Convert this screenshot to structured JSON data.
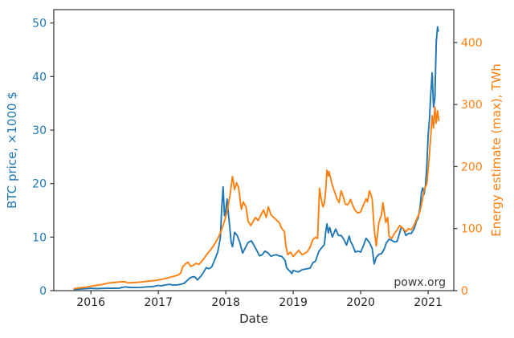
{
  "figure": {
    "watermark": "powx.org",
    "background": "#ffffff",
    "frame_color": "#333333"
  },
  "chart_data": {
    "type": "line",
    "title": "",
    "xlabel": "Date",
    "grid": false,
    "legend": "none",
    "xlim": [
      2015.45,
      2021.38
    ],
    "x_ticks": [
      2016,
      2017,
      2018,
      2019,
      2020,
      2021
    ],
    "left_axis": {
      "label": "BTC price, ×1000 $",
      "color": "#1f77b4",
      "ticks": [
        0,
        10,
        20,
        30,
        40,
        50
      ],
      "lim": [
        0,
        52.5
      ]
    },
    "right_axis": {
      "label": "Energy estimate (max), TWh",
      "color": "#ff7f0e",
      "ticks": [
        0,
        100,
        200,
        300,
        400
      ],
      "lim": [
        0,
        453
      ]
    },
    "series": [
      {
        "name": "BTC price",
        "axis": "left",
        "color": "#1f77b4",
        "x": [
          2015.75,
          2015.83,
          2015.92,
          2016.0,
          2016.08,
          2016.17,
          2016.25,
          2016.33,
          2016.42,
          2016.46,
          2016.5,
          2016.54,
          2016.58,
          2016.67,
          2016.75,
          2016.83,
          2016.92,
          2017.0,
          2017.04,
          2017.08,
          2017.17,
          2017.21,
          2017.29,
          2017.33,
          2017.38,
          2017.42,
          2017.46,
          2017.5,
          2017.54,
          2017.58,
          2017.63,
          2017.67,
          2017.71,
          2017.75,
          2017.79,
          2017.83,
          2017.88,
          2017.92,
          2017.94,
          2017.96,
          2017.98,
          2018.0,
          2018.02,
          2018.04,
          2018.08,
          2018.1,
          2018.13,
          2018.17,
          2018.21,
          2018.25,
          2018.29,
          2018.33,
          2018.38,
          2018.42,
          2018.46,
          2018.5,
          2018.54,
          2018.58,
          2018.63,
          2018.67,
          2018.71,
          2018.75,
          2018.79,
          2018.83,
          2018.88,
          2018.9,
          2018.92,
          2018.96,
          2018.98,
          2019.0,
          2019.04,
          2019.08,
          2019.13,
          2019.17,
          2019.21,
          2019.25,
          2019.29,
          2019.33,
          2019.38,
          2019.42,
          2019.46,
          2019.48,
          2019.5,
          2019.52,
          2019.54,
          2019.58,
          2019.63,
          2019.67,
          2019.71,
          2019.75,
          2019.79,
          2019.83,
          2019.85,
          2019.88,
          2019.92,
          2019.96,
          2020.0,
          2020.04,
          2020.08,
          2020.13,
          2020.17,
          2020.2,
          2020.23,
          2020.27,
          2020.31,
          2020.35,
          2020.38,
          2020.42,
          2020.46,
          2020.5,
          2020.54,
          2020.58,
          2020.6,
          2020.63,
          2020.67,
          2020.71,
          2020.75,
          2020.79,
          2020.83,
          2020.85,
          2020.88,
          2020.9,
          2020.92,
          2020.94,
          2020.96,
          2020.98,
          2021.0,
          2021.02,
          2021.04,
          2021.06,
          2021.08,
          2021.1,
          2021.12,
          2021.14,
          2021.15
        ],
        "values": [
          0.24,
          0.3,
          0.36,
          0.43,
          0.38,
          0.42,
          0.43,
          0.45,
          0.46,
          0.58,
          0.67,
          0.66,
          0.6,
          0.59,
          0.61,
          0.71,
          0.77,
          0.97,
          0.89,
          1.01,
          1.19,
          1.03,
          1.08,
          1.18,
          1.35,
          1.8,
          2.3,
          2.55,
          2.6,
          2.0,
          2.7,
          3.4,
          4.3,
          4.1,
          4.4,
          5.6,
          7.2,
          9.9,
          15.5,
          19.4,
          14.0,
          15.0,
          17.1,
          14.3,
          9.0,
          8.2,
          10.9,
          10.3,
          8.9,
          7.0,
          8.0,
          9.0,
          9.3,
          8.4,
          7.5,
          6.5,
          6.7,
          7.4,
          7.0,
          6.4,
          6.6,
          6.7,
          6.5,
          6.4,
          5.6,
          4.4,
          4.0,
          3.5,
          3.2,
          3.8,
          3.6,
          3.5,
          3.9,
          4.0,
          4.1,
          4.2,
          5.2,
          5.5,
          7.3,
          8.0,
          8.6,
          10.8,
          12.5,
          10.8,
          11.8,
          10.0,
          11.5,
          10.3,
          10.3,
          9.6,
          8.5,
          10.2,
          9.2,
          8.5,
          7.2,
          7.4,
          7.2,
          8.4,
          9.8,
          9.0,
          7.9,
          5.0,
          6.2,
          6.8,
          6.9,
          7.8,
          8.9,
          9.6,
          9.4,
          9.1,
          9.2,
          10.9,
          11.8,
          11.6,
          10.3,
          10.7,
          10.7,
          11.5,
          13.1,
          13.5,
          15.5,
          18.3,
          19.2,
          18.0,
          19.5,
          23.2,
          29.0,
          32.2,
          36.8,
          40.7,
          34.3,
          36.0,
          46.5,
          49.3,
          48.5
        ]
      },
      {
        "name": "Energy estimate (max)",
        "axis": "right",
        "color": "#ff7f0e",
        "x": [
          2015.75,
          2015.83,
          2015.92,
          2016.0,
          2016.08,
          2016.17,
          2016.25,
          2016.33,
          2016.42,
          2016.5,
          2016.54,
          2016.63,
          2016.71,
          2016.79,
          2016.88,
          2016.96,
          2017.04,
          2017.13,
          2017.21,
          2017.29,
          2017.33,
          2017.36,
          2017.4,
          2017.44,
          2017.48,
          2017.52,
          2017.56,
          2017.6,
          2017.65,
          2017.69,
          2017.73,
          2017.77,
          2017.81,
          2017.85,
          2017.9,
          2017.94,
          2017.98,
          2018.02,
          2018.06,
          2018.1,
          2018.13,
          2018.16,
          2018.19,
          2018.23,
          2018.26,
          2018.3,
          2018.33,
          2018.37,
          2018.4,
          2018.44,
          2018.48,
          2018.52,
          2018.56,
          2018.6,
          2018.63,
          2018.67,
          2018.71,
          2018.75,
          2018.79,
          2018.83,
          2018.87,
          2018.89,
          2018.92,
          2018.96,
          2019.0,
          2019.04,
          2019.08,
          2019.13,
          2019.17,
          2019.21,
          2019.25,
          2019.29,
          2019.33,
          2019.36,
          2019.39,
          2019.41,
          2019.44,
          2019.46,
          2019.48,
          2019.5,
          2019.52,
          2019.53,
          2019.56,
          2019.58,
          2019.62,
          2019.65,
          2019.68,
          2019.71,
          2019.74,
          2019.77,
          2019.8,
          2019.83,
          2019.85,
          2019.88,
          2019.92,
          2019.96,
          2020.0,
          2020.04,
          2020.08,
          2020.1,
          2020.13,
          2020.15,
          2020.17,
          2020.2,
          2020.23,
          2020.27,
          2020.31,
          2020.33,
          2020.37,
          2020.4,
          2020.42,
          2020.46,
          2020.5,
          2020.54,
          2020.58,
          2020.63,
          2020.67,
          2020.71,
          2020.75,
          2020.79,
          2020.83,
          2020.87,
          2020.9,
          2020.94,
          2020.98,
          2021.0,
          2021.02,
          2021.04,
          2021.06,
          2021.08,
          2021.1,
          2021.12,
          2021.14,
          2021.16
        ],
        "values": [
          3,
          4.5,
          5.5,
          7,
          8.5,
          10,
          12,
          13,
          14,
          14.5,
          12.5,
          13,
          13.5,
          14.5,
          15.5,
          16.5,
          18,
          20,
          22.5,
          25,
          28,
          38,
          43,
          46,
          39,
          41,
          44,
          42,
          48,
          54,
          60,
          65,
          71,
          78,
          88,
          99,
          112,
          128,
          152,
          184,
          163,
          174,
          166,
          131,
          143,
          135,
          112,
          105,
          110,
          118,
          113,
          122,
          130,
          118,
          135,
          122,
          118,
          114,
          110,
          100,
          95,
          72,
          58,
          62,
          55,
          60,
          65,
          58,
          60,
          63,
          70,
          82,
          86,
          84,
          165,
          150,
          135,
          140,
          160,
          194,
          185,
          192,
          178,
          170,
          157,
          148,
          142,
          161,
          152,
          140,
          138,
          142,
          147,
          138,
          129,
          125,
          127,
          138,
          148,
          143,
          161,
          155,
          148,
          100,
          72,
          110,
          122,
          142,
          110,
          118,
          88,
          84,
          92,
          98,
          105,
          100,
          95,
          100,
          98,
          105,
          115,
          125,
          138,
          162,
          172,
          195,
          222,
          250,
          282,
          262,
          296,
          270,
          290,
          274
        ]
      }
    ]
  }
}
